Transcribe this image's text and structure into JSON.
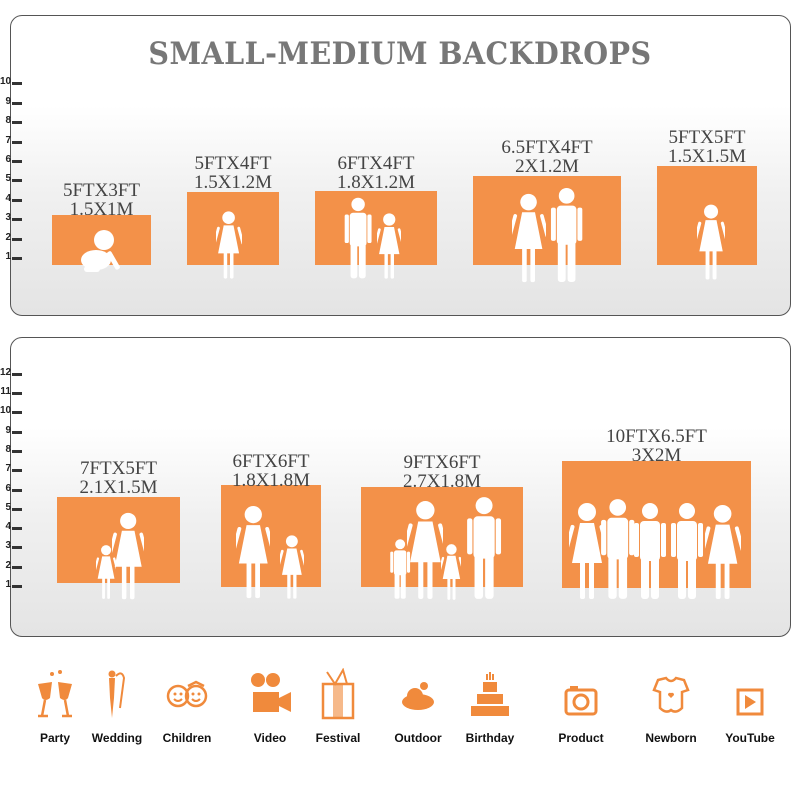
{
  "title": "SMALL-MEDIUM BACKDROPS",
  "accent_color": "#F39149",
  "top_panel": {
    "ruler": [
      "1",
      "2",
      "3",
      "4",
      "5",
      "6",
      "7",
      "8",
      "9",
      "10"
    ],
    "sizes": [
      {
        "ft": "5FTX3FT",
        "m": "1.5X1M"
      },
      {
        "ft": "5FTX4FT",
        "m": "1.5X1.2M"
      },
      {
        "ft": "6FTX4FT",
        "m": "1.8X1.2M"
      },
      {
        "ft": "6.5FTX4FT",
        "m": "2X1.2M"
      },
      {
        "ft": "5FTX5FT",
        "m": "1.5X1.5M"
      }
    ]
  },
  "bottom_panel": {
    "ruler": [
      "1",
      "2",
      "3",
      "4",
      "5",
      "6",
      "7",
      "8",
      "9",
      "10",
      "11",
      "12"
    ],
    "sizes": [
      {
        "ft": "7FTX5FT",
        "m": "2.1X1.5M"
      },
      {
        "ft": "6FTX6FT",
        "m": "1.8X1.8M"
      },
      {
        "ft": "9FTX6FT",
        "m": "2.7X1.8M"
      },
      {
        "ft": "10FTX6.5FT",
        "m": "3X2M"
      }
    ]
  },
  "uses": [
    {
      "label": "Party",
      "icon": "champagne-glasses-icon"
    },
    {
      "label": "Wedding",
      "icon": "wedding-couple-icon"
    },
    {
      "label": "Children",
      "icon": "children-faces-icon"
    },
    {
      "label": "Video",
      "icon": "movie-camera-icon"
    },
    {
      "label": "Festival",
      "icon": "gift-box-icon"
    },
    {
      "label": "Outdoor",
      "icon": "cloud-icon"
    },
    {
      "label": "Birthday",
      "icon": "birthday-cake-icon"
    },
    {
      "label": "Product",
      "icon": "camera-icon"
    },
    {
      "label": "Newborn",
      "icon": "baby-onesie-icon"
    },
    {
      "label": "YouTube",
      "icon": "play-button-icon"
    }
  ]
}
